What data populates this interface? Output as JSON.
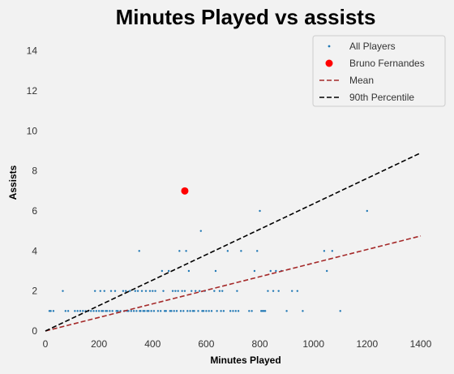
{
  "chart_data": {
    "type": "scatter",
    "title": "Minutes Played vs assists",
    "xlabel": "Minutes Played",
    "ylabel": "Assists",
    "xlim": [
      0,
      1500
    ],
    "ylim": [
      0,
      15
    ],
    "xticks": [
      0,
      200,
      400,
      600,
      800,
      1000,
      1200,
      1400
    ],
    "yticks": [
      0,
      2,
      4,
      6,
      8,
      10,
      12,
      14
    ],
    "grid": false,
    "legend_position": "top-right",
    "colors": {
      "all_players": "#1f77b4",
      "highlight": "#ff0000",
      "mean": "#a52a2a",
      "p90": "#000000",
      "plot_bg": "#f2f2f2",
      "legend_border": "#cccccc"
    },
    "series": [
      {
        "name": "All Players",
        "kind": "scatter",
        "points": [
          [
            15,
            1
          ],
          [
            20,
            1
          ],
          [
            30,
            1
          ],
          [
            65,
            2
          ],
          [
            75,
            1
          ],
          [
            85,
            1
          ],
          [
            110,
            1
          ],
          [
            120,
            1
          ],
          [
            130,
            1
          ],
          [
            140,
            1
          ],
          [
            150,
            1
          ],
          [
            160,
            1
          ],
          [
            170,
            1
          ],
          [
            180,
            1
          ],
          [
            185,
            2
          ],
          [
            190,
            1
          ],
          [
            200,
            1
          ],
          [
            205,
            2
          ],
          [
            210,
            1
          ],
          [
            215,
            1
          ],
          [
            220,
            2
          ],
          [
            225,
            1
          ],
          [
            230,
            1
          ],
          [
            240,
            1
          ],
          [
            245,
            2
          ],
          [
            250,
            1
          ],
          [
            260,
            2
          ],
          [
            265,
            1
          ],
          [
            270,
            1
          ],
          [
            280,
            1
          ],
          [
            290,
            2
          ],
          [
            295,
            1
          ],
          [
            300,
            2
          ],
          [
            305,
            1
          ],
          [
            310,
            1
          ],
          [
            315,
            2
          ],
          [
            320,
            1
          ],
          [
            330,
            1
          ],
          [
            335,
            2
          ],
          [
            340,
            1
          ],
          [
            345,
            2
          ],
          [
            350,
            4
          ],
          [
            352,
            1
          ],
          [
            355,
            1
          ],
          [
            360,
            2
          ],
          [
            365,
            1
          ],
          [
            370,
            1
          ],
          [
            375,
            2
          ],
          [
            380,
            1
          ],
          [
            385,
            1
          ],
          [
            390,
            2
          ],
          [
            395,
            1
          ],
          [
            400,
            2
          ],
          [
            405,
            1
          ],
          [
            410,
            2
          ],
          [
            420,
            1
          ],
          [
            430,
            1
          ],
          [
            435,
            3
          ],
          [
            440,
            2
          ],
          [
            445,
            1
          ],
          [
            450,
            1
          ],
          [
            460,
            3
          ],
          [
            465,
            1
          ],
          [
            470,
            1
          ],
          [
            475,
            2
          ],
          [
            480,
            1
          ],
          [
            485,
            2
          ],
          [
            490,
            1
          ],
          [
            495,
            2
          ],
          [
            500,
            4
          ],
          [
            505,
            1
          ],
          [
            510,
            2
          ],
          [
            515,
            1
          ],
          [
            520,
            2
          ],
          [
            525,
            4
          ],
          [
            530,
            1
          ],
          [
            535,
            3
          ],
          [
            540,
            1
          ],
          [
            545,
            2
          ],
          [
            550,
            1
          ],
          [
            555,
            1
          ],
          [
            560,
            2
          ],
          [
            570,
            1
          ],
          [
            575,
            2
          ],
          [
            580,
            5
          ],
          [
            585,
            1
          ],
          [
            590,
            1
          ],
          [
            595,
            2
          ],
          [
            600,
            1
          ],
          [
            610,
            1
          ],
          [
            620,
            1
          ],
          [
            630,
            2
          ],
          [
            635,
            3
          ],
          [
            640,
            1
          ],
          [
            650,
            2
          ],
          [
            655,
            1
          ],
          [
            660,
            2
          ],
          [
            665,
            1
          ],
          [
            680,
            4
          ],
          [
            690,
            1
          ],
          [
            700,
            1
          ],
          [
            710,
            1
          ],
          [
            715,
            2
          ],
          [
            720,
            1
          ],
          [
            730,
            4
          ],
          [
            760,
            1
          ],
          [
            770,
            1
          ],
          [
            780,
            3
          ],
          [
            790,
            4
          ],
          [
            800,
            6
          ],
          [
            805,
            1
          ],
          [
            810,
            1
          ],
          [
            815,
            1
          ],
          [
            820,
            1
          ],
          [
            830,
            2
          ],
          [
            840,
            3
          ],
          [
            850,
            2
          ],
          [
            860,
            3
          ],
          [
            870,
            2
          ],
          [
            880,
            3
          ],
          [
            900,
            1
          ],
          [
            920,
            2
          ],
          [
            940,
            2
          ],
          [
            960,
            1
          ],
          [
            1040,
            4
          ],
          [
            1050,
            3
          ],
          [
            1070,
            4
          ],
          [
            1100,
            1
          ],
          [
            1200,
            6
          ]
        ]
      },
      {
        "name": "Bruno Fernandes",
        "kind": "scatter",
        "points": [
          [
            520,
            7
          ]
        ]
      },
      {
        "name": "Mean",
        "kind": "line",
        "points": [
          [
            0,
            0
          ],
          [
            1400,
            4.75
          ]
        ]
      },
      {
        "name": "90th Percentile",
        "kind": "line",
        "points": [
          [
            0,
            0
          ],
          [
            1400,
            8.9
          ]
        ]
      }
    ]
  }
}
